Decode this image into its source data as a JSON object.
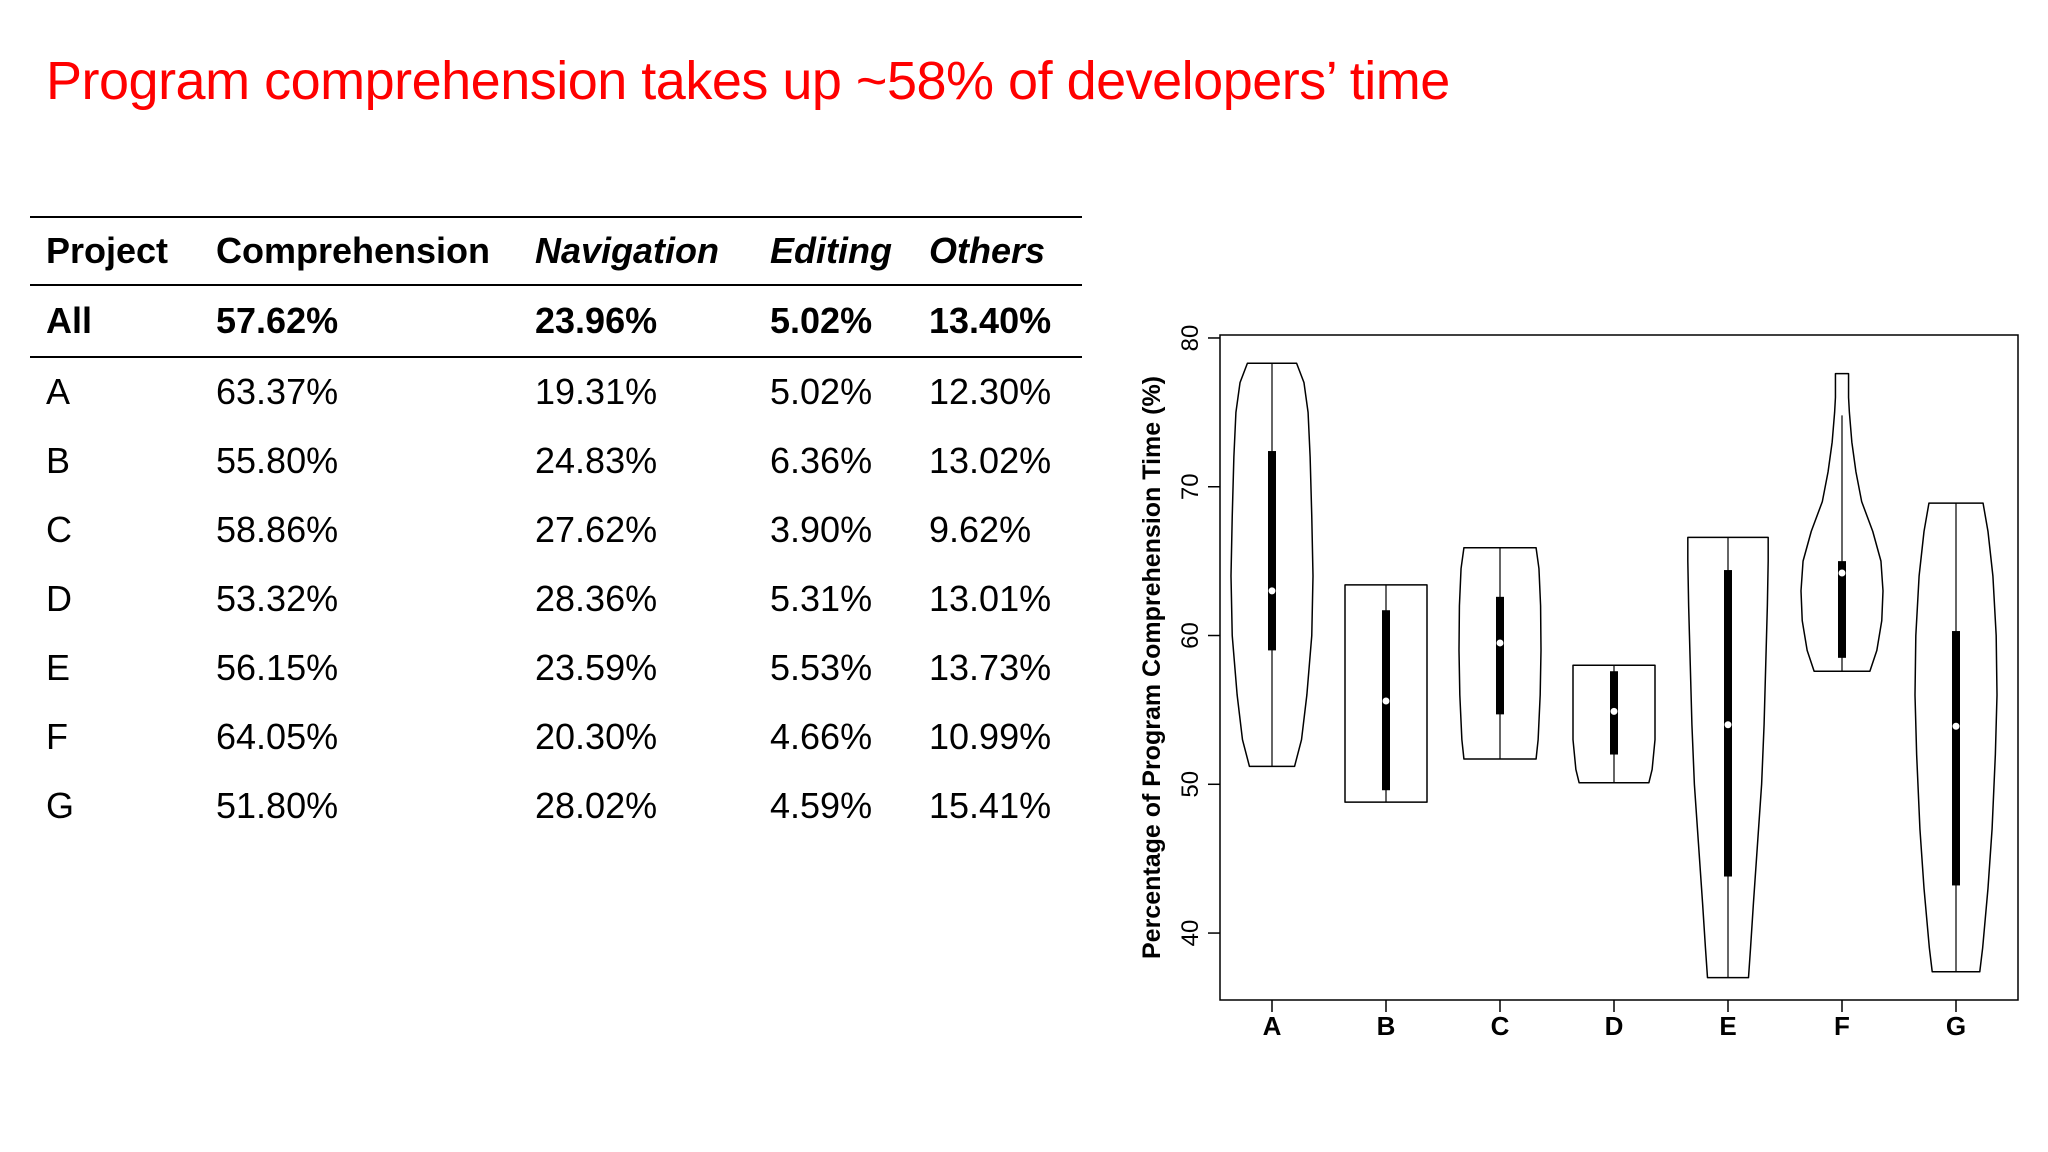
{
  "title": "Program comprehension takes up ~58% of developers’ time",
  "table": {
    "headers": [
      "Project",
      "Comprehension",
      "Navigation",
      "Editing",
      "Others"
    ],
    "total": {
      "project": "All",
      "comprehension": "57.62%",
      "navigation": "23.96%",
      "editing": "5.02%",
      "others": "13.40%"
    },
    "rows": [
      {
        "project": "A",
        "comprehension": "63.37%",
        "navigation": "19.31%",
        "editing": "5.02%",
        "others": "12.30%"
      },
      {
        "project": "B",
        "comprehension": "55.80%",
        "navigation": "24.83%",
        "editing": "6.36%",
        "others": "13.02%"
      },
      {
        "project": "C",
        "comprehension": "58.86%",
        "navigation": "27.62%",
        "editing": "3.90%",
        "others": "9.62%"
      },
      {
        "project": "D",
        "comprehension": "53.32%",
        "navigation": "28.36%",
        "editing": "5.31%",
        "others": "13.01%"
      },
      {
        "project": "E",
        "comprehension": "56.15%",
        "navigation": "23.59%",
        "editing": "5.53%",
        "others": "13.73%"
      },
      {
        "project": "F",
        "comprehension": "64.05%",
        "navigation": "20.30%",
        "editing": "4.66%",
        "others": "10.99%"
      },
      {
        "project": "G",
        "comprehension": "51.80%",
        "navigation": "28.02%",
        "editing": "4.59%",
        "others": "15.41%"
      }
    ]
  },
  "chart_data": {
    "type": "violin",
    "ylabel": "Percentage of Program Comprehension Time (%)",
    "xlabel": "",
    "ylim": [
      35.5,
      80.2
    ],
    "yticks": [
      40,
      50,
      60,
      70,
      80
    ],
    "categories": [
      "A",
      "B",
      "C",
      "D",
      "E",
      "F",
      "G"
    ],
    "violins": [
      {
        "category": "A",
        "min": 51.2,
        "max": 78.3,
        "q1": 59.0,
        "q3": 72.4,
        "median": 63.0,
        "whisker_low": 51.2,
        "whisker_high": 78.3,
        "profile": [
          [
            51.2,
            0.55
          ],
          [
            53,
            0.72
          ],
          [
            56,
            0.85
          ],
          [
            60,
            0.97
          ],
          [
            64,
            1.0
          ],
          [
            68,
            0.97
          ],
          [
            72,
            0.93
          ],
          [
            75,
            0.88
          ],
          [
            77,
            0.78
          ],
          [
            78.3,
            0.6
          ]
        ]
      },
      {
        "category": "B",
        "min": 48.8,
        "max": 63.4,
        "q1": 49.6,
        "q3": 61.7,
        "median": 55.6,
        "whisker_low": 48.8,
        "whisker_high": 63.4,
        "profile": [
          [
            48.8,
            1.0
          ],
          [
            50,
            1.0
          ],
          [
            53,
            1.0
          ],
          [
            56,
            1.0
          ],
          [
            59,
            1.0
          ],
          [
            62,
            1.0
          ],
          [
            63.4,
            1.0
          ]
        ]
      },
      {
        "category": "C",
        "min": 51.7,
        "max": 65.9,
        "q1": 54.7,
        "q3": 62.6,
        "median": 59.5,
        "whisker_low": 51.7,
        "whisker_high": 65.9,
        "profile": [
          [
            51.7,
            0.88
          ],
          [
            53,
            0.93
          ],
          [
            56,
            0.98
          ],
          [
            59,
            1.0
          ],
          [
            62,
            0.99
          ],
          [
            64.5,
            0.95
          ],
          [
            65.9,
            0.88
          ]
        ]
      },
      {
        "category": "D",
        "min": 50.1,
        "max": 58.0,
        "q1": 52.0,
        "q3": 57.6,
        "median": 54.9,
        "whisker_low": 50.1,
        "whisker_high": 58.0,
        "profile": [
          [
            50.1,
            0.85
          ],
          [
            51,
            0.93
          ],
          [
            53,
            1.0
          ],
          [
            55,
            1.0
          ],
          [
            57,
            1.0
          ],
          [
            58.0,
            1.0
          ]
        ]
      },
      {
        "category": "E",
        "min": 37.0,
        "max": 66.6,
        "q1": 43.8,
        "q3": 64.4,
        "median": 54.0,
        "whisker_low": 37.0,
        "whisker_high": 66.6,
        "profile": [
          [
            37.0,
            0.5
          ],
          [
            39,
            0.55
          ],
          [
            42,
            0.62
          ],
          [
            46,
            0.72
          ],
          [
            50,
            0.82
          ],
          [
            54,
            0.88
          ],
          [
            58,
            0.92
          ],
          [
            62,
            0.96
          ],
          [
            65,
            0.98
          ],
          [
            66.6,
            0.98
          ]
        ]
      },
      {
        "category": "F",
        "min": 57.6,
        "max": 77.6,
        "q1": 58.5,
        "q3": 65.0,
        "median": 64.2,
        "whisker_low": 57.6,
        "whisker_high": 74.8,
        "profile": [
          [
            57.6,
            0.68
          ],
          [
            59,
            0.85
          ],
          [
            61,
            0.97
          ],
          [
            63,
            1.0
          ],
          [
            65,
            0.95
          ],
          [
            67,
            0.75
          ],
          [
            69,
            0.48
          ],
          [
            71,
            0.34
          ],
          [
            73,
            0.24
          ],
          [
            75,
            0.18
          ],
          [
            76,
            0.16
          ],
          [
            77.6,
            0.16
          ]
        ]
      },
      {
        "category": "G",
        "min": 37.4,
        "max": 68.9,
        "q1": 43.2,
        "q3": 60.3,
        "median": 53.9,
        "whisker_low": 37.4,
        "whisker_high": 68.9,
        "profile": [
          [
            37.4,
            0.58
          ],
          [
            39,
            0.65
          ],
          [
            43,
            0.78
          ],
          [
            47,
            0.88
          ],
          [
            52,
            0.96
          ],
          [
            56,
            1.0
          ],
          [
            60,
            0.98
          ],
          [
            64,
            0.9
          ],
          [
            67,
            0.78
          ],
          [
            68.9,
            0.66
          ]
        ]
      }
    ]
  }
}
